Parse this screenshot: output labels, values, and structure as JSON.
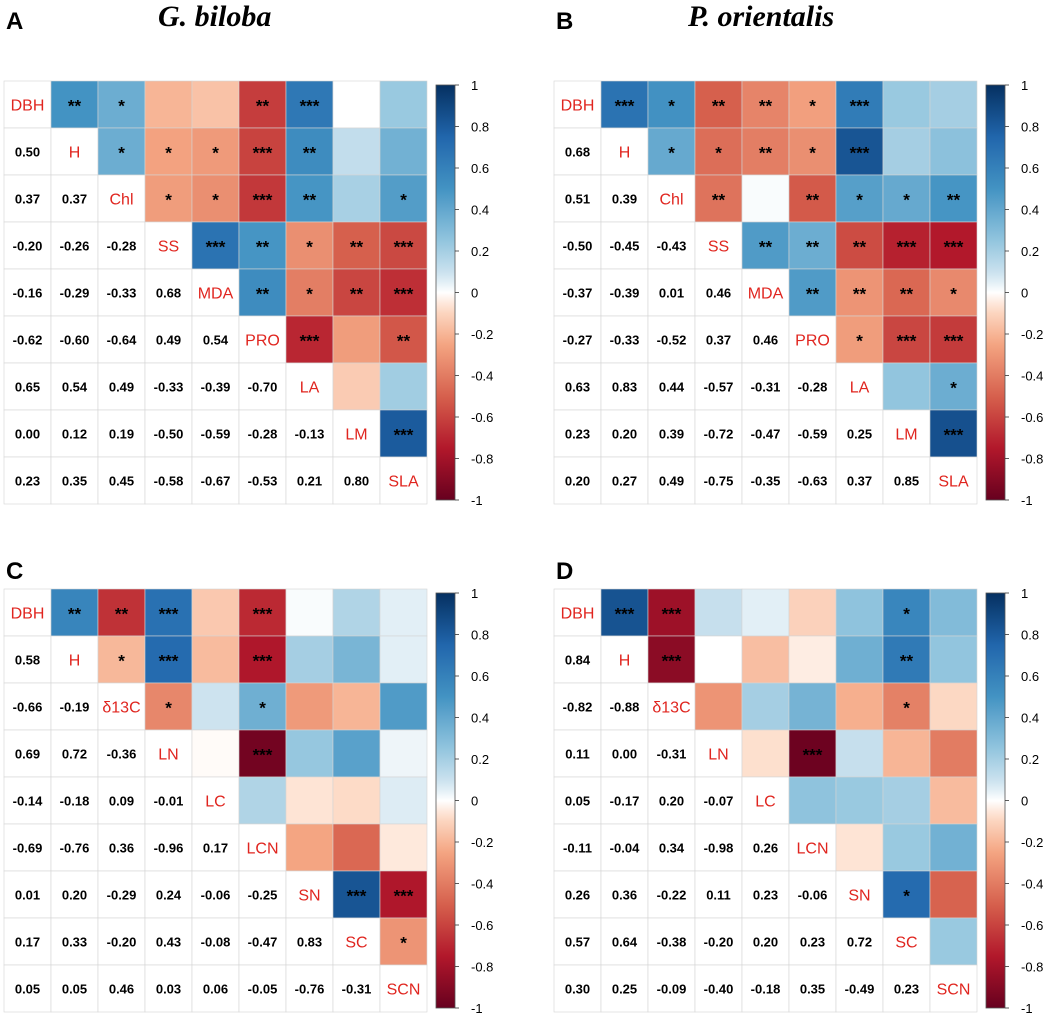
{
  "colors": {
    "neg": "#67001F",
    "pos": "#053061",
    "label": "#E0251F",
    "grid": "#D4D4D4"
  },
  "legend": {
    "ticks": [
      "1",
      "0.8",
      "0.6",
      "0.4",
      "0.2",
      "0",
      "-0.2",
      "-0.4",
      "-0.6",
      "-0.8",
      "-1"
    ]
  },
  "chart_data": [
    {
      "type": "heatmap",
      "panel": "A",
      "title": "G. biloba",
      "variables": [
        "DBH",
        "H",
        "Chl",
        "SS",
        "MDA",
        "PRO",
        "LA",
        "LM",
        "SLA"
      ],
      "lower": [
        [],
        [
          "0.50"
        ],
        [
          "0.37",
          "0.37"
        ],
        [
          "-0.20",
          "-0.26",
          "-0.28"
        ],
        [
          "-0.16",
          "-0.29",
          "-0.33",
          "0.68"
        ],
        [
          "-0.62",
          "-0.60",
          "-0.64",
          "0.49",
          "0.54"
        ],
        [
          "0.65",
          "0.54",
          "0.49",
          "-0.33",
          "-0.39",
          "-0.70"
        ],
        [
          "0.00",
          "0.12",
          "0.19",
          "-0.50",
          "-0.59",
          "-0.28",
          "-0.13"
        ],
        [
          "0.23",
          "0.35",
          "0.45",
          "-0.58",
          "-0.67",
          "-0.53",
          "0.21",
          "0.80"
        ]
      ],
      "upper_stars": [
        [
          "**",
          "*",
          "",
          "",
          "**",
          "***",
          "",
          ""
        ],
        [
          "*",
          "*",
          "*",
          "***",
          "**",
          "",
          ""
        ],
        [
          "*",
          "*",
          "***",
          "**",
          "",
          "*"
        ],
        [
          "***",
          "**",
          "*",
          "**",
          "***"
        ],
        [
          "**",
          "*",
          "**",
          "***"
        ],
        [
          "***",
          "",
          "**"
        ],
        [
          "",
          ""
        ],
        [
          "***"
        ],
        []
      ]
    },
    {
      "type": "heatmap",
      "panel": "B",
      "title": "P. orientalis",
      "variables": [
        "DBH",
        "H",
        "Chl",
        "SS",
        "MDA",
        "PRO",
        "LA",
        "LM",
        "SLA"
      ],
      "lower": [
        [],
        [
          "0.68"
        ],
        [
          "0.51",
          "0.39"
        ],
        [
          "-0.50",
          "-0.45",
          "-0.43"
        ],
        [
          "-0.37",
          "-0.39",
          "0.01",
          "0.46"
        ],
        [
          "-0.27",
          "-0.33",
          "-0.52",
          "0.37",
          "0.46"
        ],
        [
          "0.63",
          "0.83",
          "0.44",
          "-0.57",
          "-0.31",
          "-0.28"
        ],
        [
          "0.23",
          "0.20",
          "0.39",
          "-0.72",
          "-0.47",
          "-0.59",
          "0.25"
        ],
        [
          "0.20",
          "0.27",
          "0.49",
          "-0.75",
          "-0.35",
          "-0.63",
          "0.37",
          "0.85"
        ]
      ],
      "upper_stars": [
        [
          "***",
          "*",
          "**",
          "**",
          "*",
          "***",
          "",
          ""
        ],
        [
          "*",
          "*",
          "**",
          "*",
          "***",
          "",
          ""
        ],
        [
          "**",
          "",
          "**",
          "*",
          "*",
          "**"
        ],
        [
          "**",
          "**",
          "**",
          "***",
          "***"
        ],
        [
          "**",
          "**",
          "**",
          "*"
        ],
        [
          "*",
          "***",
          "***"
        ],
        [
          "",
          "*"
        ],
        [
          "***"
        ],
        []
      ]
    },
    {
      "type": "heatmap",
      "panel": "C",
      "title": "",
      "variables": [
        "DBH",
        "H",
        "δ13C",
        "LN",
        "LC",
        "LCN",
        "SN",
        "SC",
        "SCN"
      ],
      "lower": [
        [],
        [
          "0.58"
        ],
        [
          "-0.66",
          "-0.19"
        ],
        [
          "0.69",
          "0.72",
          "-0.36"
        ],
        [
          "-0.14",
          "-0.18",
          "0.09",
          "-0.01"
        ],
        [
          "-0.69",
          "-0.76",
          "0.36",
          "-0.96",
          "0.17"
        ],
        [
          "0.01",
          "0.20",
          "-0.29",
          "0.24",
          "-0.06",
          "-0.25"
        ],
        [
          "0.17",
          "0.33",
          "-0.20",
          "0.43",
          "-0.08",
          "-0.47",
          "0.83"
        ],
        [
          "0.05",
          "0.05",
          "0.46",
          "0.03",
          "0.06",
          "-0.05",
          "-0.76",
          "-0.31"
        ]
      ],
      "upper_stars": [
        [
          "**",
          "**",
          "***",
          "",
          "***",
          "",
          "",
          ""
        ],
        [
          "*",
          "***",
          "",
          "***",
          "",
          "",
          ""
        ],
        [
          "*",
          "",
          "*",
          "",
          "",
          ""
        ],
        [
          "",
          "***",
          "",
          "",
          ""
        ],
        [
          "",
          "",
          "",
          ""
        ],
        [
          "",
          "",
          ""
        ],
        [
          "***",
          "***"
        ],
        [
          "*"
        ],
        []
      ]
    },
    {
      "type": "heatmap",
      "panel": "D",
      "title": "",
      "variables": [
        "DBH",
        "H",
        "δ13C",
        "LN",
        "LC",
        "LCN",
        "SN",
        "SC",
        "SCN"
      ],
      "lower": [
        [],
        [
          "0.84"
        ],
        [
          "-0.82",
          "-0.88"
        ],
        [
          "0.11",
          "0.00",
          "-0.31"
        ],
        [
          "0.05",
          "-0.17",
          "0.20",
          "-0.07"
        ],
        [
          "-0.11",
          "-0.04",
          "0.34",
          "-0.98",
          "0.26"
        ],
        [
          "0.26",
          "0.36",
          "-0.22",
          "0.11",
          "0.23",
          "-0.06"
        ],
        [
          "0.57",
          "0.64",
          "-0.38",
          "-0.20",
          "0.20",
          "0.23",
          "0.72"
        ],
        [
          "0.30",
          "0.25",
          "-0.09",
          "-0.40",
          "-0.18",
          "0.35",
          "-0.49",
          "0.23"
        ]
      ],
      "upper_stars": [
        [
          "***",
          "***",
          "",
          "",
          "",
          "",
          "*",
          ""
        ],
        [
          "***",
          "",
          "",
          "",
          "",
          "**",
          ""
        ],
        [
          "",
          "",
          "",
          "",
          "*",
          ""
        ],
        [
          "",
          "***",
          "",
          "",
          ""
        ],
        [
          "",
          "",
          "",
          ""
        ],
        [
          "",
          "",
          ""
        ],
        [
          "*",
          ""
        ],
        [
          ""
        ],
        []
      ]
    }
  ]
}
